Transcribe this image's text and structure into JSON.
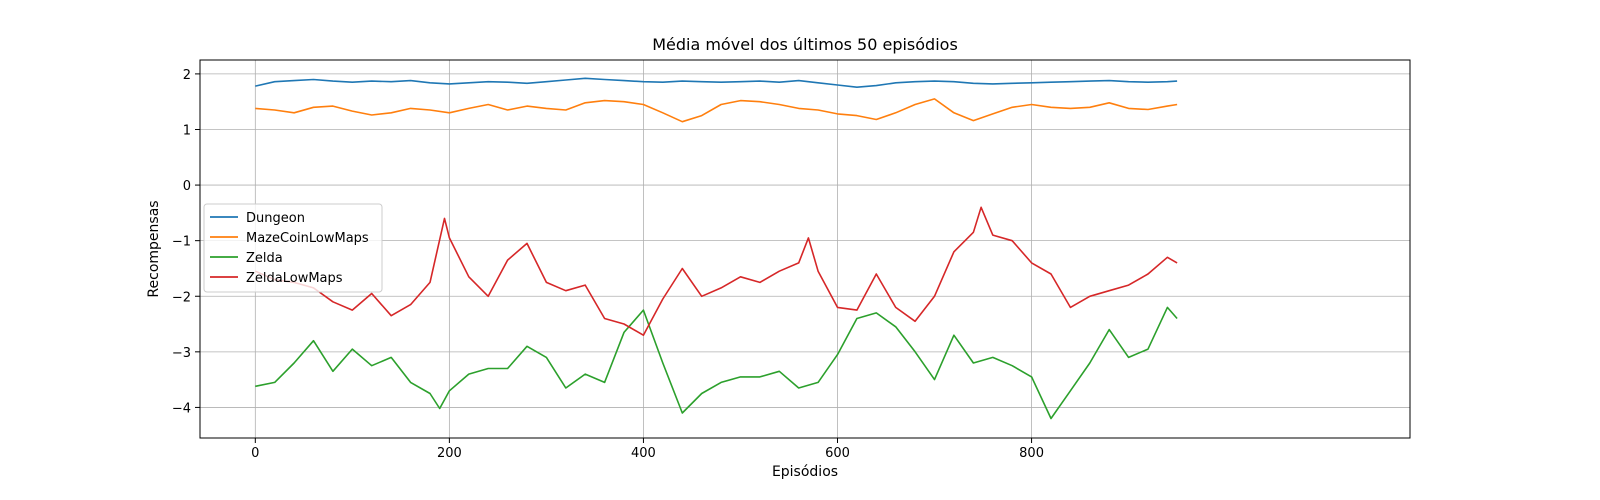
{
  "chart_data": {
    "type": "line",
    "title": "Média móvel dos últimos 50 episódios",
    "xlabel": "Episódios",
    "ylabel": "Recompensas",
    "xlim": [
      -57,
      1190
    ],
    "ylim": [
      -4.55,
      2.25
    ],
    "xticks": [
      0,
      200,
      400,
      600,
      800
    ],
    "yticks": [
      2,
      1,
      0,
      -1,
      -2,
      -3,
      -4
    ],
    "ytick_labels": [
      "2",
      "1",
      "0",
      "−1",
      "−2",
      "−3",
      "−4"
    ],
    "grid": true,
    "legend_position": "center-left",
    "series": [
      {
        "name": "Dungeon",
        "color": "#1f77b4",
        "x": [
          0,
          20,
          40,
          60,
          80,
          100,
          120,
          140,
          160,
          180,
          200,
          220,
          240,
          260,
          280,
          300,
          320,
          340,
          360,
          380,
          400,
          420,
          440,
          460,
          480,
          500,
          520,
          540,
          560,
          580,
          600,
          620,
          640,
          660,
          680,
          700,
          720,
          740,
          760,
          780,
          800,
          820,
          840,
          860,
          880,
          900,
          920,
          940,
          950
        ],
        "y": [
          1.78,
          1.86,
          1.88,
          1.9,
          1.87,
          1.85,
          1.87,
          1.86,
          1.88,
          1.84,
          1.82,
          1.84,
          1.86,
          1.85,
          1.83,
          1.86,
          1.89,
          1.92,
          1.9,
          1.88,
          1.86,
          1.85,
          1.87,
          1.86,
          1.85,
          1.86,
          1.87,
          1.85,
          1.88,
          1.84,
          1.8,
          1.76,
          1.79,
          1.84,
          1.86,
          1.87,
          1.86,
          1.83,
          1.82,
          1.83,
          1.84,
          1.85,
          1.86,
          1.87,
          1.88,
          1.86,
          1.85,
          1.86,
          1.87
        ]
      },
      {
        "name": "MazeCoinLowMaps",
        "color": "#ff7f0e",
        "x": [
          0,
          20,
          40,
          60,
          80,
          100,
          120,
          140,
          160,
          180,
          200,
          220,
          240,
          260,
          280,
          300,
          320,
          340,
          360,
          380,
          400,
          420,
          440,
          460,
          480,
          500,
          520,
          540,
          560,
          580,
          600,
          620,
          640,
          660,
          680,
          700,
          720,
          740,
          760,
          780,
          800,
          820,
          840,
          860,
          880,
          900,
          920,
          940,
          950
        ],
        "y": [
          1.38,
          1.35,
          1.3,
          1.4,
          1.42,
          1.33,
          1.26,
          1.3,
          1.38,
          1.35,
          1.3,
          1.38,
          1.45,
          1.35,
          1.42,
          1.38,
          1.35,
          1.48,
          1.52,
          1.5,
          1.45,
          1.3,
          1.14,
          1.25,
          1.45,
          1.52,
          1.5,
          1.45,
          1.38,
          1.35,
          1.28,
          1.25,
          1.18,
          1.3,
          1.45,
          1.55,
          1.3,
          1.16,
          1.28,
          1.4,
          1.45,
          1.4,
          1.38,
          1.4,
          1.48,
          1.38,
          1.36,
          1.42,
          1.45
        ]
      },
      {
        "name": "Zelda",
        "color": "#2ca02c",
        "x": [
          0,
          20,
          40,
          60,
          80,
          100,
          120,
          140,
          160,
          180,
          190,
          200,
          220,
          240,
          260,
          280,
          300,
          320,
          340,
          360,
          380,
          400,
          420,
          440,
          460,
          480,
          500,
          520,
          540,
          560,
          580,
          600,
          620,
          640,
          660,
          680,
          700,
          720,
          740,
          760,
          780,
          800,
          820,
          840,
          860,
          880,
          900,
          920,
          940,
          950
        ],
        "y": [
          -3.62,
          -3.55,
          -3.2,
          -2.8,
          -3.35,
          -2.95,
          -3.25,
          -3.1,
          -3.55,
          -3.75,
          -4.02,
          -3.7,
          -3.4,
          -3.3,
          -3.3,
          -2.9,
          -3.1,
          -3.65,
          -3.4,
          -3.55,
          -2.65,
          -2.25,
          -3.2,
          -4.1,
          -3.75,
          -3.55,
          -3.45,
          -3.45,
          -3.35,
          -3.65,
          -3.55,
          -3.05,
          -2.4,
          -2.3,
          -2.55,
          -3.0,
          -3.5,
          -2.7,
          -3.2,
          -3.1,
          -3.25,
          -3.45,
          -4.2,
          -3.7,
          -3.2,
          -2.6,
          -3.1,
          -2.95,
          -2.2,
          -2.4
        ]
      },
      {
        "name": "ZeldaLowMaps",
        "color": "#d62728",
        "x": [
          0,
          20,
          40,
          60,
          80,
          100,
          120,
          140,
          160,
          180,
          195,
          200,
          220,
          240,
          260,
          280,
          300,
          320,
          340,
          360,
          380,
          400,
          420,
          440,
          460,
          480,
          500,
          520,
          540,
          560,
          570,
          580,
          600,
          620,
          640,
          660,
          680,
          700,
          720,
          740,
          748,
          760,
          780,
          800,
          820,
          840,
          860,
          880,
          900,
          920,
          940,
          950
        ],
        "y": [
          -1.55,
          -1.7,
          -1.75,
          -1.85,
          -2.1,
          -2.25,
          -1.95,
          -2.35,
          -2.15,
          -1.75,
          -0.6,
          -0.95,
          -1.65,
          -2.0,
          -1.35,
          -1.05,
          -1.75,
          -1.9,
          -1.8,
          -2.4,
          -2.5,
          -2.7,
          -2.05,
          -1.5,
          -2.0,
          -1.85,
          -1.65,
          -1.75,
          -1.55,
          -1.4,
          -0.95,
          -1.55,
          -2.2,
          -2.25,
          -1.6,
          -2.2,
          -2.45,
          -2.0,
          -1.2,
          -0.85,
          -0.4,
          -0.9,
          -1.0,
          -1.4,
          -1.6,
          -2.2,
          -2.0,
          -1.9,
          -1.8,
          -1.6,
          -1.3,
          -1.4
        ]
      }
    ]
  }
}
